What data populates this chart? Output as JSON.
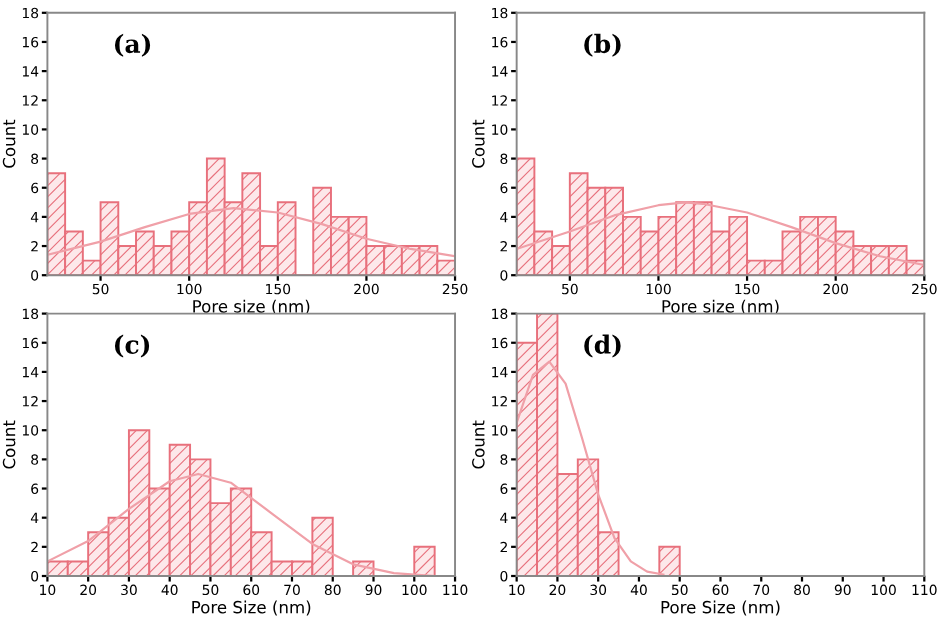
{
  "chart_data": [
    {
      "type": "histogram",
      "xlabel": "Pore size (nm)",
      "ylabel": "Count",
      "annotations": [
        "(a)"
      ],
      "color": "#e8707c",
      "bins": [
        20,
        30,
        40,
        50,
        60,
        70,
        80,
        90,
        100,
        110,
        120,
        130,
        140,
        150,
        160,
        170,
        180,
        190,
        200,
        210,
        220,
        230,
        240,
        250
      ],
      "values": [
        7,
        3,
        1,
        5,
        2,
        3,
        2,
        3,
        5,
        8,
        5,
        7,
        2,
        5,
        0,
        6,
        4,
        4,
        2,
        2,
        2,
        2,
        1
      ],
      "series": [
        {
          "type": "line",
          "color": "#f0a0a8",
          "x": [
            20,
            50,
            75,
            100,
            125,
            150,
            175,
            200,
            225,
            250
          ],
          "values": [
            1.4,
            2.3,
            3.3,
            4.2,
            4.6,
            4.3,
            3.5,
            2.5,
            1.8,
            1.3
          ]
        }
      ],
      "xlim": [
        20,
        250
      ],
      "xticks": [
        50,
        100,
        150,
        200,
        250
      ],
      "ylim": [
        0,
        18
      ],
      "yticks": [
        0,
        2,
        4,
        6,
        8,
        10,
        12,
        14,
        16,
        18
      ],
      "grid": false,
      "legend": false
    },
    {
      "type": "histogram",
      "xlabel": "Pore size (nm)",
      "ylabel": "Count",
      "annotations": [
        "(b)"
      ],
      "color": "#e8707c",
      "bins": [
        20,
        30,
        40,
        50,
        60,
        70,
        80,
        90,
        100,
        110,
        120,
        130,
        140,
        150,
        160,
        170,
        180,
        190,
        200,
        210,
        220,
        230,
        240,
        250
      ],
      "values": [
        8,
        3,
        2,
        7,
        6,
        6,
        4,
        3,
        4,
        5,
        5,
        3,
        4,
        1,
        1,
        3,
        4,
        4,
        3,
        2,
        2,
        2,
        1
      ],
      "series": [
        {
          "type": "line",
          "color": "#f0a0a8",
          "x": [
            20,
            50,
            75,
            100,
            115,
            125,
            150,
            175,
            200,
            225,
            250
          ],
          "values": [
            1.8,
            3.0,
            4.1,
            4.8,
            5.0,
            4.9,
            4.3,
            3.3,
            2.2,
            1.3,
            0.7
          ]
        }
      ],
      "xlim": [
        20,
        250
      ],
      "xticks": [
        50,
        100,
        150,
        200,
        250
      ],
      "ylim": [
        0,
        18
      ],
      "yticks": [
        0,
        2,
        4,
        6,
        8,
        10,
        12,
        14,
        16,
        18
      ],
      "grid": false,
      "legend": false
    },
    {
      "type": "histogram",
      "xlabel": "Pore Size (nm)",
      "ylabel": "Count",
      "annotations": [
        "(c)"
      ],
      "color": "#e8707c",
      "bins": [
        10,
        15,
        20,
        25,
        30,
        35,
        40,
        45,
        50,
        55,
        60,
        65,
        70,
        75,
        80,
        85,
        90,
        95,
        100,
        105
      ],
      "values": [
        1,
        1,
        3,
        4,
        10,
        6,
        9,
        8,
        5,
        6,
        3,
        1,
        1,
        4,
        0,
        1,
        0,
        0,
        2
      ],
      "series": [
        {
          "type": "line",
          "color": "#f0a0a8",
          "x": [
            10,
            20,
            30,
            40,
            47,
            55,
            65,
            75,
            85,
            95,
            105
          ],
          "values": [
            1.0,
            2.4,
            4.6,
            6.5,
            7.0,
            6.4,
            4.3,
            2.2,
            0.8,
            0.2,
            0.0
          ]
        }
      ],
      "xlim": [
        10,
        110
      ],
      "xticks": [
        10,
        20,
        30,
        40,
        50,
        60,
        70,
        80,
        90,
        100,
        110
      ],
      "ylim": [
        0,
        18
      ],
      "yticks": [
        0,
        2,
        4,
        6,
        8,
        10,
        12,
        14,
        16,
        18
      ],
      "grid": false,
      "legend": false
    },
    {
      "type": "histogram",
      "xlabel": "Pore Size (nm)",
      "ylabel": "Count",
      "annotations": [
        "(d)"
      ],
      "color": "#e8707c",
      "bins": [
        10,
        15,
        20,
        25,
        30,
        35,
        40,
        45,
        50
      ],
      "values": [
        16,
        18,
        7,
        8,
        3,
        0,
        0,
        2
      ],
      "series": [
        {
          "type": "line",
          "color": "#f0a0a8",
          "x": [
            10,
            14,
            18,
            22,
            26,
            30,
            34,
            38,
            42,
            46
          ],
          "values": [
            10.5,
            13.8,
            14.7,
            13.2,
            9.5,
            5.6,
            2.6,
            1.0,
            0.3,
            0.1
          ]
        }
      ],
      "xlim": [
        10,
        110
      ],
      "xticks": [
        10,
        20,
        30,
        40,
        50,
        60,
        70,
        80,
        90,
        100,
        110
      ],
      "ylim": [
        0,
        18
      ],
      "yticks": [
        0,
        2,
        4,
        6,
        8,
        10,
        12,
        14,
        16,
        18
      ],
      "grid": false,
      "legend": false
    }
  ]
}
